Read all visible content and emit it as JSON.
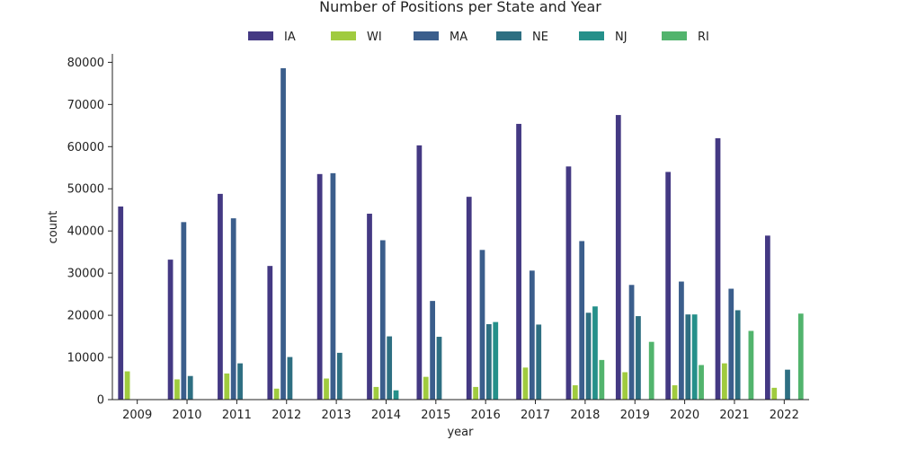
{
  "chart_data": {
    "type": "bar",
    "title": "Number of Positions per State and Year",
    "xlabel": "year",
    "ylabel": "count",
    "ylim": [
      0,
      82000
    ],
    "yticks": [
      0,
      10000,
      20000,
      30000,
      40000,
      50000,
      60000,
      70000,
      80000
    ],
    "legend_position": "top-center",
    "grid": false,
    "categories": [
      "2009",
      "2010",
      "2011",
      "2012",
      "2013",
      "2014",
      "2015",
      "2016",
      "2017",
      "2018",
      "2019",
      "2020",
      "2021",
      "2022"
    ],
    "series": [
      {
        "name": "IA",
        "color": "#443983",
        "values": [
          45800,
          33200,
          48800,
          31700,
          53500,
          44100,
          60300,
          48100,
          65400,
          55300,
          67500,
          54000,
          62000,
          38900
        ]
      },
      {
        "name": "WI",
        "color": "#a0cb3f",
        "values": [
          6700,
          4800,
          6200,
          2600,
          5000,
          3000,
          5400,
          3000,
          7600,
          3400,
          6500,
          3400,
          8600,
          2800
        ]
      },
      {
        "name": "MA",
        "color": "#3b5e8c",
        "values": [
          null,
          42100,
          43000,
          78600,
          53700,
          37800,
          23400,
          35500,
          30600,
          37600,
          27200,
          28000,
          26300,
          null
        ]
      },
      {
        "name": "NE",
        "color": "#2e6f82",
        "values": [
          null,
          5600,
          8600,
          10100,
          11100,
          15000,
          14900,
          17900,
          17800,
          20600,
          19800,
          20200,
          21200,
          7100
        ]
      },
      {
        "name": "NJ",
        "color": "#25908a",
        "values": [
          null,
          null,
          null,
          null,
          null,
          2200,
          null,
          18400,
          null,
          22100,
          null,
          20200,
          null,
          null
        ]
      },
      {
        "name": "RI",
        "color": "#52b46d",
        "values": [
          null,
          null,
          null,
          null,
          null,
          null,
          null,
          null,
          null,
          9400,
          13700,
          8200,
          16300,
          20400
        ]
      }
    ]
  }
}
